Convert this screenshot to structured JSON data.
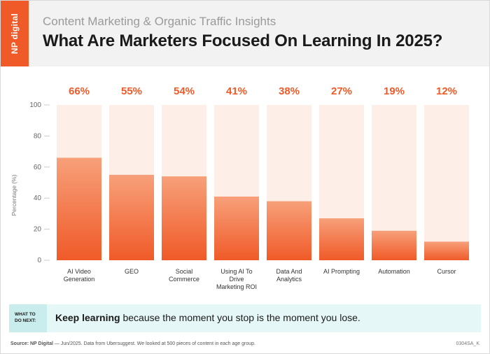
{
  "header": {
    "logo_text": "NP digital",
    "subtitle": "Content Marketing & Organic Traffic Insights",
    "title": "What Are Marketers Focused On Learning In 2025?"
  },
  "colors": {
    "brand": "#f05a28",
    "bar_top": "#f7a07a",
    "bar_bottom": "#f05a28",
    "bar_track": "#fdeee7",
    "value_label": "#f05a28",
    "cta_bg": "#e6f7f7",
    "cta_label_bg": "#c9ecec"
  },
  "chart_data": {
    "type": "bar",
    "title": "",
    "xlabel": "",
    "ylabel": "Percentage (%)",
    "ylim": [
      0,
      100
    ],
    "yticks": [
      0,
      20,
      40,
      60,
      80,
      100
    ],
    "grid": false,
    "categories": [
      [
        "AI Video",
        "Generation"
      ],
      [
        "GEO"
      ],
      [
        "Social",
        "Commerce"
      ],
      [
        "Using AI To",
        "Drive",
        "Marketing ROI"
      ],
      [
        "Data And",
        "Analytics"
      ],
      [
        "AI Prompting"
      ],
      [
        "Automation"
      ],
      [
        "Cursor"
      ]
    ],
    "values": [
      66,
      55,
      54,
      41,
      38,
      27,
      19,
      12
    ],
    "value_labels": [
      "66%",
      "55%",
      "54%",
      "41%",
      "38%",
      "27%",
      "19%",
      "12%"
    ]
  },
  "cta": {
    "label": "WHAT TO\nDO NEXT:",
    "bold_text": "Keep learning",
    "text": " because the moment you stop is the moment you lose."
  },
  "footer": {
    "source_label": "Source: NP Digital",
    "source_text": " — Jun/2025. Data from Ubersuggest. We looked at 500 pieces of content in each age group.",
    "code": "0304SA_K"
  }
}
